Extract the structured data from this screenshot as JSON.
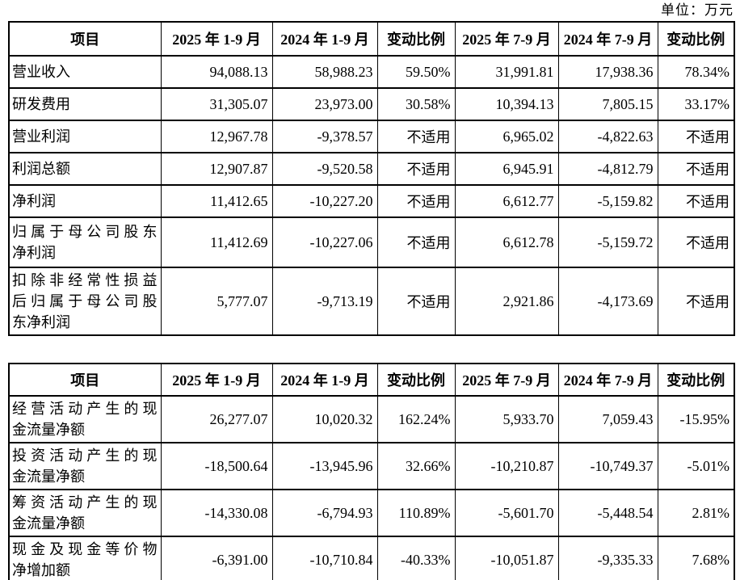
{
  "unit_label": "单位：万元",
  "colors": {
    "border": "#000000",
    "text": "#000000",
    "background": "#ffffff"
  },
  "tables": [
    {
      "name": "profit-summary-table",
      "headers": [
        "项目",
        "2025 年 1-9 月",
        "2024 年 1-9 月",
        "变动比例",
        "2025 年 7-9 月",
        "2024 年 7-9 月",
        "变动比例"
      ],
      "rows": [
        {
          "label_lines": [
            "营业收入"
          ],
          "values": [
            "94,088.13",
            "58,988.23",
            "59.50%",
            "31,991.81",
            "17,938.36",
            "78.34%"
          ]
        },
        {
          "label_lines": [
            "研发费用"
          ],
          "values": [
            "31,305.07",
            "23,973.00",
            "30.58%",
            "10,394.13",
            "7,805.15",
            "33.17%"
          ]
        },
        {
          "label_lines": [
            "营业利润"
          ],
          "values": [
            "12,967.78",
            "-9,378.57",
            "不适用",
            "6,965.02",
            "-4,822.63",
            "不适用"
          ]
        },
        {
          "label_lines": [
            "利润总额"
          ],
          "values": [
            "12,907.87",
            "-9,520.58",
            "不适用",
            "6,945.91",
            "-4,812.79",
            "不适用"
          ]
        },
        {
          "label_lines": [
            "净利润"
          ],
          "values": [
            "11,412.65",
            "-10,227.20",
            "不适用",
            "6,612.77",
            "-5,159.82",
            "不适用"
          ]
        },
        {
          "label_lines": [
            "归属于母公司股东",
            "净利润"
          ],
          "values": [
            "11,412.69",
            "-10,227.06",
            "不适用",
            "6,612.78",
            "-5,159.72",
            "不适用"
          ]
        },
        {
          "label_lines": [
            "扣除非经常性损益",
            "后归属于母公司股",
            "东净利润"
          ],
          "values": [
            "5,777.07",
            "-9,713.19",
            "不适用",
            "2,921.86",
            "-4,173.69",
            "不适用"
          ]
        }
      ]
    },
    {
      "name": "cashflow-summary-table",
      "headers": [
        "项目",
        "2025 年 1-9 月",
        "2024 年 1-9 月",
        "变动比例",
        "2025 年 7-9 月",
        "2024 年 7-9 月",
        "变动比例"
      ],
      "rows": [
        {
          "label_lines": [
            "经营活动产生的现",
            "金流量净额"
          ],
          "values": [
            "26,277.07",
            "10,020.32",
            "162.24%",
            "5,933.70",
            "7,059.43",
            "-15.95%"
          ]
        },
        {
          "label_lines": [
            "投资活动产生的现",
            "金流量净额"
          ],
          "values": [
            "-18,500.64",
            "-13,945.96",
            "32.66%",
            "-10,210.87",
            "-10,749.37",
            "-5.01%"
          ]
        },
        {
          "label_lines": [
            "筹资活动产生的现",
            "金流量净额"
          ],
          "values": [
            "-14,330.08",
            "-6,794.93",
            "110.89%",
            "-5,601.70",
            "-5,448.54",
            "2.81%"
          ]
        },
        {
          "label_lines": [
            "现金及现金等价物",
            "净增加额"
          ],
          "values": [
            "-6,391.00",
            "-10,710.84",
            "-40.33%",
            "-10,051.87",
            "-9,335.33",
            "7.68%"
          ]
        }
      ]
    }
  ]
}
